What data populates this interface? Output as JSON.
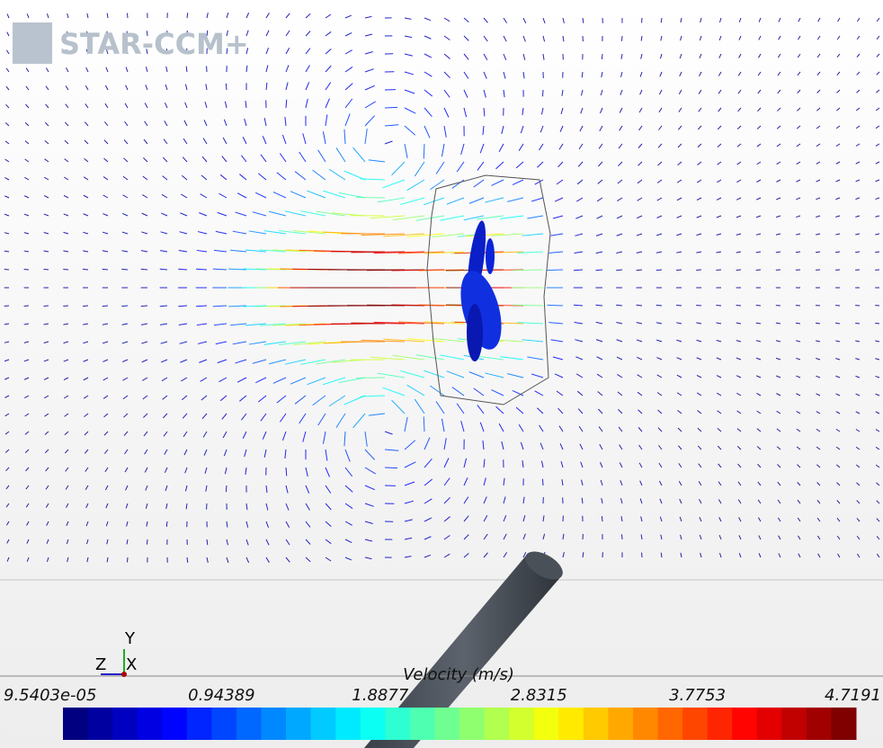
{
  "logo": {
    "text": "STAR-CCM+"
  },
  "axes_triad": {
    "y": "Y",
    "z": "Z",
    "x": "X"
  },
  "colorbar": {
    "title": "Velocity (m/s)",
    "ticks": [
      "9.5403e-05",
      "0.94389",
      "1.8877",
      "2.8315",
      "3.7753",
      "4.7191"
    ]
  }
}
